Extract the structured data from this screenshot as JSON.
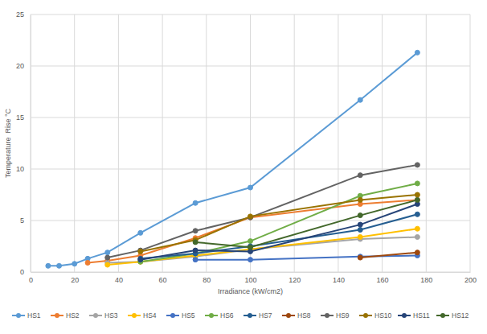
{
  "chart_data": {
    "type": "line",
    "xlabel": "Irradiance (kW/cm2)",
    "ylabel": "Temperature  Rise °C",
    "x": [
      8,
      13,
      20,
      26,
      35,
      50,
      75,
      100,
      150,
      176
    ],
    "xlim": [
      0,
      200
    ],
    "xticks": [
      0,
      20,
      40,
      60,
      80,
      100,
      120,
      140,
      160,
      180,
      200
    ],
    "ylim": [
      0,
      25
    ],
    "yticks": [
      0,
      5,
      10,
      15,
      20,
      25
    ],
    "grid": true,
    "legend": "bottom",
    "marker": "circle",
    "line_style": "solid",
    "series": [
      {
        "name": "HS1",
        "color": "#5b9bd5",
        "values": [
          0.6,
          0.6,
          0.8,
          1.3,
          1.9,
          3.8,
          6.7,
          8.2,
          16.7,
          21.3
        ]
      },
      {
        "name": "HS2",
        "color": "#ed7d31",
        "values": [
          null,
          null,
          null,
          0.9,
          1.1,
          1.6,
          3.3,
          5.3,
          6.6,
          7.0
        ]
      },
      {
        "name": "HS3",
        "color": "#a5a5a5",
        "values": [
          null,
          null,
          null,
          null,
          0.9,
          1.0,
          1.5,
          2.2,
          3.2,
          3.4
        ]
      },
      {
        "name": "HS4",
        "color": "#ffc000",
        "values": [
          null,
          null,
          null,
          null,
          0.7,
          1.0,
          1.6,
          2.2,
          3.4,
          4.2
        ]
      },
      {
        "name": "HS5",
        "color": "#4472c4",
        "values": [
          null,
          null,
          null,
          null,
          null,
          null,
          1.2,
          1.2,
          1.5,
          1.6
        ]
      },
      {
        "name": "HS6",
        "color": "#70ad47",
        "values": [
          null,
          null,
          null,
          null,
          null,
          1.0,
          1.8,
          3.0,
          7.4,
          8.6
        ]
      },
      {
        "name": "HS7",
        "color": "#255e91",
        "values": [
          null,
          null,
          null,
          null,
          null,
          1.3,
          1.8,
          2.5,
          4.1,
          5.6
        ]
      },
      {
        "name": "HS8",
        "color": "#9e480e",
        "values": [
          null,
          null,
          null,
          null,
          null,
          null,
          null,
          null,
          1.4,
          1.9
        ]
      },
      {
        "name": "HS9",
        "color": "#636363",
        "values": [
          null,
          null,
          null,
          null,
          1.4,
          2.1,
          4.0,
          5.3,
          9.4,
          10.4
        ]
      },
      {
        "name": "HS10",
        "color": "#997300",
        "values": [
          null,
          null,
          null,
          null,
          null,
          2.0,
          3.1,
          5.4,
          7.0,
          7.5
        ]
      },
      {
        "name": "HS11",
        "color": "#264478",
        "values": [
          null,
          null,
          null,
          null,
          null,
          1.2,
          2.1,
          2.0,
          4.6,
          6.6
        ]
      },
      {
        "name": "HS12",
        "color": "#43682b",
        "values": [
          null,
          null,
          null,
          null,
          null,
          null,
          2.9,
          2.4,
          5.5,
          7.0
        ]
      }
    ]
  }
}
